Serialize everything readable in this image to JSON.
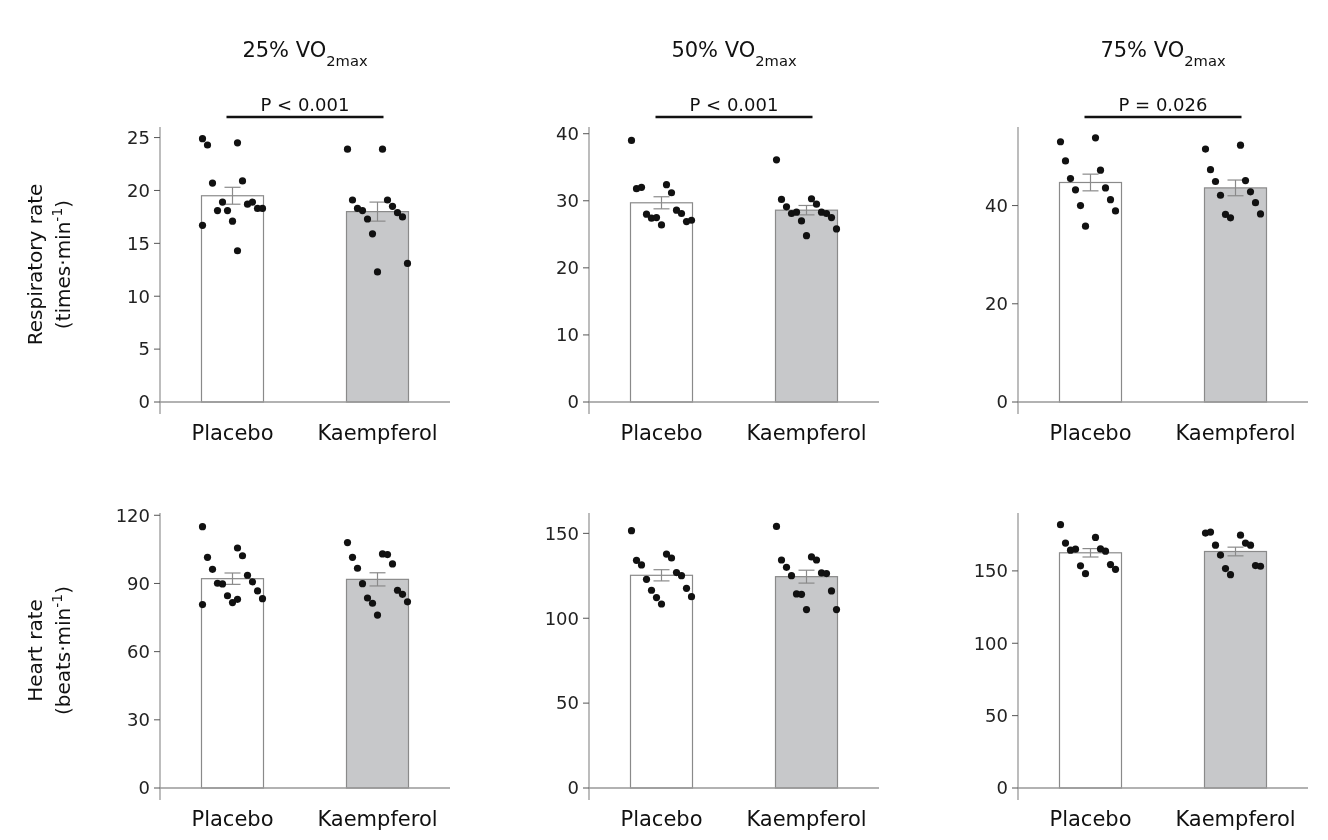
{
  "chart_data": [
    {
      "type": "bar",
      "title": "25% VO$_{2max}$",
      "ylabel": "Respiratory rate\n(times·min$^{-1}$)",
      "categories": [
        "Placebo",
        "Kaempferol"
      ],
      "ylim": [
        0,
        26
      ],
      "yticks": [
        0,
        5,
        10,
        15,
        20,
        25
      ],
      "annotations": [
        "P < 0.001"
      ],
      "series": [
        {
          "values": [
            19.5,
            18.0
          ],
          "colors": [
            "#ffffff",
            "#c7c8ca"
          ],
          "errors": [
            0.8,
            0.9
          ]
        },
        {
          "type": "scatter",
          "color": "#111111",
          "x": [
            "Placebo",
            "Placebo",
            "Placebo",
            "Placebo",
            "Placebo",
            "Placebo",
            "Placebo",
            "Placebo",
            "Placebo",
            "Placebo",
            "Placebo",
            "Placebo",
            "Placebo",
            "Placebo",
            "Placebo",
            "Kaempferol",
            "Kaempferol",
            "Kaempferol",
            "Kaempferol",
            "Kaempferol",
            "Kaempferol",
            "Kaempferol",
            "Kaempferol",
            "Kaempferol",
            "Kaempferol",
            "Kaempferol",
            "Kaempferol",
            "Kaempferol"
          ],
          "values": [
            24.9,
            24.5,
            24.3,
            20.9,
            20.7,
            18.7,
            18.1,
            18.9,
            18.9,
            18.3,
            18.1,
            18.3,
            17.1,
            16.7,
            14.3,
            23.9,
            23.9,
            19.1,
            19.1,
            18.3,
            18.5,
            18.1,
            17.9,
            17.3,
            17.5,
            15.9,
            13.1,
            12.3
          ]
        }
      ]
    },
    {
      "type": "bar",
      "title": "50% VO$_{2max}$",
      "categories": [
        "Placebo",
        "Kaempferol"
      ],
      "ylim": [
        0,
        41
      ],
      "yticks": [
        0,
        10,
        20,
        30,
        40
      ],
      "annotations": [
        "P < 0.001"
      ],
      "series": [
        {
          "values": [
            29.7,
            28.6
          ],
          "colors": [
            "#ffffff",
            "#c7c8ca"
          ],
          "errors": [
            0.9,
            0.7
          ]
        },
        {
          "type": "scatter",
          "color": "#111111",
          "x": [
            "Placebo",
            "Placebo",
            "Placebo",
            "Placebo",
            "Placebo",
            "Placebo",
            "Placebo",
            "Placebo",
            "Placebo",
            "Placebo",
            "Placebo",
            "Placebo",
            "Placebo",
            "Kaempferol",
            "Kaempferol",
            "Kaempferol",
            "Kaempferol",
            "Kaempferol",
            "Kaempferol",
            "Kaempferol",
            "Kaempferol",
            "Kaempferol",
            "Kaempferol",
            "Kaempferol",
            "Kaempferol",
            "Kaempferol"
          ],
          "values": [
            39.0,
            32.4,
            31.8,
            31.2,
            32.0,
            28.6,
            28.0,
            28.1,
            27.4,
            26.9,
            27.5,
            27.1,
            26.4,
            36.1,
            30.3,
            30.2,
            29.5,
            29.1,
            28.3,
            28.1,
            28.1,
            28.3,
            27.5,
            27.0,
            25.8,
            24.8
          ]
        }
      ]
    },
    {
      "type": "bar",
      "title": "75% VO$_{2max}$",
      "categories": [
        "Placebo",
        "Kaempferol"
      ],
      "ylim": [
        0,
        56
      ],
      "yticks": [
        0,
        20,
        40
      ],
      "annotations": [
        "P = 0.026"
      ],
      "series": [
        {
          "values": [
            44.7,
            43.6
          ],
          "colors": [
            "#ffffff",
            "#c7c8ca"
          ],
          "errors": [
            1.7,
            1.6
          ]
        },
        {
          "type": "scatter",
          "color": "#111111",
          "x": [
            "Placebo",
            "Placebo",
            "Placebo",
            "Placebo",
            "Placebo",
            "Placebo",
            "Placebo",
            "Placebo",
            "Placebo",
            "Placebo",
            "Placebo",
            "Kaempferol",
            "Kaempferol",
            "Kaempferol",
            "Kaempferol",
            "Kaempferol",
            "Kaempferol",
            "Kaempferol",
            "Kaempferol",
            "Kaempferol",
            "Kaempferol",
            "Kaempferol"
          ],
          "values": [
            53.0,
            53.8,
            49.1,
            47.2,
            45.5,
            43.6,
            43.2,
            41.2,
            40.0,
            38.9,
            35.8,
            51.5,
            52.3,
            47.3,
            45.1,
            44.9,
            42.8,
            42.1,
            40.6,
            38.2,
            38.3,
            37.5
          ]
        }
      ]
    },
    {
      "type": "bar",
      "ylabel": "Heart rate\n(beats·min$^{-1}$)",
      "categories": [
        "Placebo",
        "Kaempferol"
      ],
      "ylim": [
        0,
        121
      ],
      "yticks": [
        0,
        30,
        60,
        90,
        120
      ],
      "series": [
        {
          "values": [
            92.1,
            91.8
          ],
          "colors": [
            "#ffffff",
            "#c7c8ca"
          ],
          "errors": [
            2.5,
            2.9
          ]
        },
        {
          "type": "scatter",
          "color": "#111111",
          "x": [
            "Placebo",
            "Placebo",
            "Placebo",
            "Placebo",
            "Placebo",
            "Placebo",
            "Placebo",
            "Placebo",
            "Placebo",
            "Placebo",
            "Placebo",
            "Placebo",
            "Placebo",
            "Placebo",
            "Placebo",
            "Kaempferol",
            "Kaempferol",
            "Kaempferol",
            "Kaempferol",
            "Kaempferol",
            "Kaempferol",
            "Kaempferol",
            "Kaempferol",
            "Kaempferol",
            "Kaempferol",
            "Kaempferol",
            "Kaempferol",
            "Kaempferol"
          ],
          "values": [
            115.0,
            105.6,
            101.5,
            102.2,
            96.2,
            93.6,
            90.1,
            90.7,
            89.8,
            86.7,
            84.6,
            83.3,
            81.6,
            80.7,
            83.0,
            108.0,
            103.0,
            101.5,
            102.7,
            96.7,
            98.6,
            89.9,
            87.0,
            83.6,
            85.2,
            81.3,
            81.9,
            76.1
          ]
        }
      ]
    },
    {
      "type": "bar",
      "categories": [
        "Placebo",
        "Kaempferol"
      ],
      "ylim": [
        0,
        162
      ],
      "yticks": [
        0,
        50,
        100,
        150
      ],
      "series": [
        {
          "values": [
            125.3,
            124.5
          ],
          "colors": [
            "#ffffff",
            "#c7c8ca"
          ],
          "errors": [
            3.3,
            3.8
          ]
        },
        {
          "type": "scatter",
          "color": "#111111",
          "x": [
            "Placebo",
            "Placebo",
            "Placebo",
            "Placebo",
            "Placebo",
            "Placebo",
            "Placebo",
            "Placebo",
            "Placebo",
            "Placebo",
            "Placebo",
            "Placebo",
            "Placebo",
            "Kaempferol",
            "Kaempferol",
            "Kaempferol",
            "Kaempferol",
            "Kaempferol",
            "Kaempferol",
            "Kaempferol",
            "Kaempferol",
            "Kaempferol",
            "Kaempferol",
            "Kaempferol",
            "Kaempferol",
            "Kaempferol"
          ],
          "values": [
            151.6,
            137.8,
            134.1,
            135.5,
            131.4,
            126.9,
            122.9,
            125.1,
            116.5,
            117.6,
            112.2,
            112.7,
            108.4,
            154.1,
            136.1,
            134.3,
            134.3,
            130.0,
            126.7,
            125.1,
            126.3,
            114.3,
            116.1,
            114.1,
            105.1,
            105.1
          ]
        }
      ]
    },
    {
      "type": "bar",
      "categories": [
        "Placebo",
        "Kaempferol"
      ],
      "ylim": [
        0,
        190
      ],
      "yticks": [
        0,
        50,
        100,
        150
      ],
      "series": [
        {
          "values": [
            162.5,
            163.4
          ],
          "colors": [
            "#ffffff",
            "#c7c8ca"
          ],
          "errors": [
            2.9,
            3.0
          ]
        },
        {
          "type": "scatter",
          "color": "#111111",
          "x": [
            "Placebo",
            "Placebo",
            "Placebo",
            "Placebo",
            "Placebo",
            "Placebo",
            "Placebo",
            "Placebo",
            "Placebo",
            "Placebo",
            "Placebo",
            "Kaempferol",
            "Kaempferol",
            "Kaempferol",
            "Kaempferol",
            "Kaempferol",
            "Kaempferol",
            "Kaempferol",
            "Kaempferol",
            "Kaempferol",
            "Kaempferol",
            "Kaempferol"
          ],
          "values": [
            181.9,
            173.1,
            169.2,
            165.2,
            164.3,
            163.6,
            165.0,
            154.4,
            153.5,
            151.1,
            148.1,
            176.1,
            174.7,
            176.8,
            169.2,
            167.8,
            167.8,
            160.9,
            153.7,
            151.6,
            153.2,
            147.4
          ]
        }
      ]
    }
  ]
}
